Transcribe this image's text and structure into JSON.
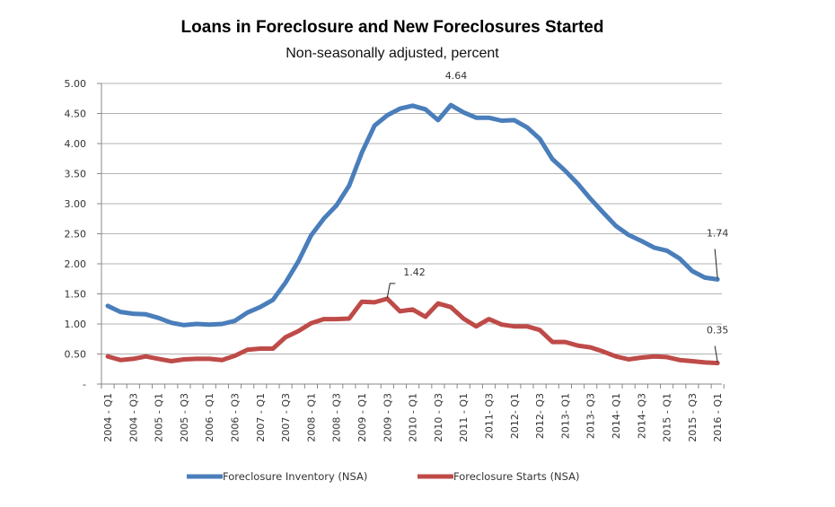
{
  "chart_data": {
    "type": "line",
    "title": "Loans in Foreclosure and New Foreclosures Started",
    "subtitle": "Non-seasonally adjusted, percent",
    "xlabel": "",
    "ylabel": "",
    "ylim": [
      0,
      5
    ],
    "grid": true,
    "legend_position": "bottom",
    "y_ticks": [
      {
        "value": 0,
        "label": "-"
      },
      {
        "value": 0.5,
        "label": "0.50"
      },
      {
        "value": 1.0,
        "label": "1.00"
      },
      {
        "value": 1.5,
        "label": "1.50"
      },
      {
        "value": 2.0,
        "label": "2.00"
      },
      {
        "value": 2.5,
        "label": "2.50"
      },
      {
        "value": 3.0,
        "label": "3.00"
      },
      {
        "value": 3.5,
        "label": "3.50"
      },
      {
        "value": 4.0,
        "label": "4.00"
      },
      {
        "value": 4.5,
        "label": "4.50"
      },
      {
        "value": 5.0,
        "label": "5.00"
      }
    ],
    "categories": [
      "2004 Q1",
      "2004 Q2",
      "2004 Q3",
      "2004 Q4",
      "2005 Q1",
      "2005 Q2",
      "2005 Q3",
      "2005 Q4",
      "2006 Q1",
      "2006 Q2",
      "2006 Q3",
      "2006 Q4",
      "2007 Q1",
      "2007 Q2",
      "2007 Q3",
      "2007 Q4",
      "2008 Q1",
      "2008 Q2",
      "2008 Q3",
      "2008 Q4",
      "2009 Q1",
      "2009 Q2",
      "2009 Q3",
      "2009 Q4",
      "2010 Q1",
      "2010 Q2",
      "2010 Q3",
      "2010 Q4",
      "2011 Q1",
      "2011 Q2",
      "2011 Q3",
      "2011 Q4",
      "2012 Q1",
      "2012 Q2",
      "2012 Q3",
      "2012 Q4",
      "2013 Q1",
      "2013 Q2",
      "2013 Q3",
      "2013 Q4",
      "2014 Q1",
      "2014 Q2",
      "2014 Q3",
      "2014 Q4",
      "2015 Q1",
      "2015 Q2",
      "2015 Q3",
      "2015 Q4",
      "2016 Q1"
    ],
    "x_tick_labels": [
      {
        "index": 0,
        "label": "2004 - Q1"
      },
      {
        "index": 2,
        "label": "2004 - Q3"
      },
      {
        "index": 4,
        "label": "2005 - Q1"
      },
      {
        "index": 6,
        "label": "2005 - Q3"
      },
      {
        "index": 8,
        "label": "2006 - Q1"
      },
      {
        "index": 10,
        "label": "2006 - Q3"
      },
      {
        "index": 12,
        "label": "2007 - Q1"
      },
      {
        "index": 14,
        "label": "2007 - Q3"
      },
      {
        "index": 16,
        "label": "2008 - Q1"
      },
      {
        "index": 18,
        "label": "2008 - Q3"
      },
      {
        "index": 20,
        "label": "2009 - Q1"
      },
      {
        "index": 22,
        "label": "2009 - Q3"
      },
      {
        "index": 24,
        "label": "2010 - Q1"
      },
      {
        "index": 26,
        "label": "2010 - Q3"
      },
      {
        "index": 28,
        "label": "2011 - Q1"
      },
      {
        "index": 30,
        "label": "2011- Q3"
      },
      {
        "index": 32,
        "label": "2012- Q1"
      },
      {
        "index": 34,
        "label": "2012- Q3"
      },
      {
        "index": 36,
        "label": "2013- Q1"
      },
      {
        "index": 38,
        "label": "2013- Q3"
      },
      {
        "index": 40,
        "label": "2014- Q1"
      },
      {
        "index": 42,
        "label": "2014- Q3"
      },
      {
        "index": 44,
        "label": "2015 - Q1"
      },
      {
        "index": 46,
        "label": "2015 - Q3"
      },
      {
        "index": 48,
        "label": "2016 - Q1"
      }
    ],
    "series": [
      {
        "name": "Foreclosure Inventory (NSA)",
        "color": "#4a7ebb",
        "values": [
          1.3,
          1.2,
          1.17,
          1.16,
          1.1,
          1.02,
          0.98,
          1.0,
          0.99,
          1.0,
          1.05,
          1.19,
          1.28,
          1.4,
          1.69,
          2.04,
          2.47,
          2.75,
          2.97,
          3.3,
          3.85,
          4.3,
          4.47,
          4.58,
          4.63,
          4.57,
          4.39,
          4.64,
          4.52,
          4.43,
          4.43,
          4.38,
          4.39,
          4.27,
          4.08,
          3.74,
          3.55,
          3.33,
          3.08,
          2.85,
          2.63,
          2.48,
          2.38,
          2.27,
          2.22,
          2.09,
          1.88,
          1.77,
          1.74
        ]
      },
      {
        "name": "Foreclosure Starts (NSA)",
        "color": "#be4b48",
        "values": [
          0.46,
          0.4,
          0.42,
          0.46,
          0.42,
          0.38,
          0.41,
          0.42,
          0.42,
          0.4,
          0.47,
          0.57,
          0.59,
          0.59,
          0.78,
          0.88,
          1.01,
          1.08,
          1.08,
          1.09,
          1.37,
          1.36,
          1.42,
          1.21,
          1.24,
          1.12,
          1.34,
          1.28,
          1.09,
          0.96,
          1.08,
          0.99,
          0.96,
          0.96,
          0.9,
          0.7,
          0.7,
          0.64,
          0.61,
          0.54,
          0.46,
          0.41,
          0.44,
          0.46,
          0.45,
          0.4,
          0.38,
          0.36,
          0.35
        ]
      }
    ],
    "annotations": [
      {
        "series": 0,
        "index": 27,
        "label": "4.64"
      },
      {
        "series": 0,
        "index": 48,
        "label": "1.74"
      },
      {
        "series": 1,
        "index": 22,
        "label": "1.42"
      },
      {
        "series": 1,
        "index": 48,
        "label": "0.35"
      }
    ]
  }
}
